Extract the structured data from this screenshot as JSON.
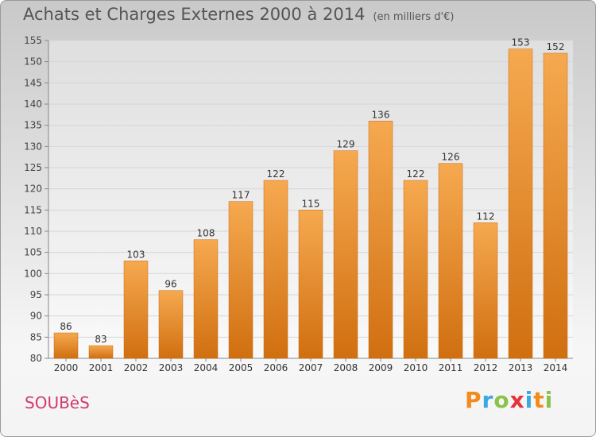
{
  "header": {
    "title": "Achats et Charges Externes 2000 à 2014",
    "subtitle": "(en milliers d'€)"
  },
  "footer": {
    "commune": "SOUBèS",
    "brand": "Proxiti"
  },
  "colors": {
    "bar_light": "#f4a44a",
    "bar_dark": "#d07010",
    "grid": "#d6d6d6",
    "commune": "#d33a6a"
  },
  "chart_data": {
    "type": "bar",
    "title": "Achats et Charges Externes 2000 à 2014",
    "subtitle": "(en milliers d'€)",
    "categories": [
      "2000",
      "2001",
      "2002",
      "2003",
      "2004",
      "2005",
      "2006",
      "2007",
      "2008",
      "2009",
      "2010",
      "2011",
      "2012",
      "2013",
      "2014"
    ],
    "values": [
      86,
      83,
      103,
      96,
      108,
      117,
      122,
      115,
      129,
      136,
      122,
      126,
      112,
      153,
      152
    ],
    "ylim": [
      80,
      155
    ],
    "yticks": [
      80,
      85,
      90,
      95,
      100,
      105,
      110,
      115,
      120,
      125,
      130,
      135,
      140,
      145,
      150,
      155
    ],
    "grid": true,
    "xlabel": "",
    "ylabel": ""
  }
}
